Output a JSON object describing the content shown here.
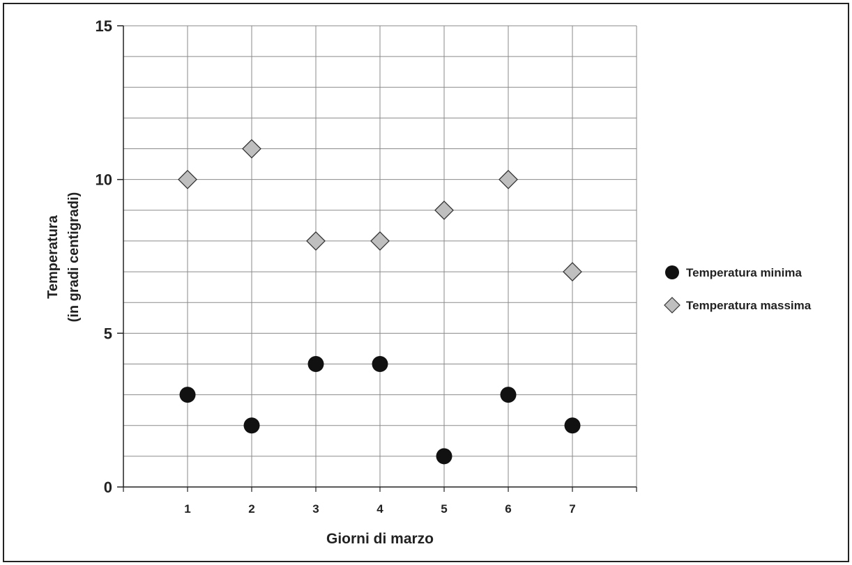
{
  "chart_data": {
    "type": "scatter",
    "title": "",
    "xlabel": "Giorni di marzo",
    "ylabel_line1": "Temperatura",
    "ylabel_line2": "(in gradi centigradi)",
    "x": [
      1,
      2,
      3,
      4,
      5,
      6,
      7
    ],
    "x_ticks": [
      "1",
      "2",
      "3",
      "4",
      "5",
      "6",
      "7"
    ],
    "xlim": [
      0,
      8
    ],
    "ylim": [
      0,
      15
    ],
    "y_ticks": [
      "0",
      "5",
      "10",
      "15"
    ],
    "y_tick_values": [
      0,
      5,
      10,
      15
    ],
    "grid": true,
    "legend_position": "right",
    "series": [
      {
        "name": "Temperatura minima",
        "marker": "circle",
        "color": "#111111",
        "values": [
          3,
          2,
          4,
          4,
          1,
          3,
          2
        ]
      },
      {
        "name": "Temperatura massima",
        "marker": "diamond",
        "color": "#bfbfbf",
        "values": [
          10,
          11,
          8,
          8,
          9,
          10,
          7
        ]
      }
    ]
  }
}
